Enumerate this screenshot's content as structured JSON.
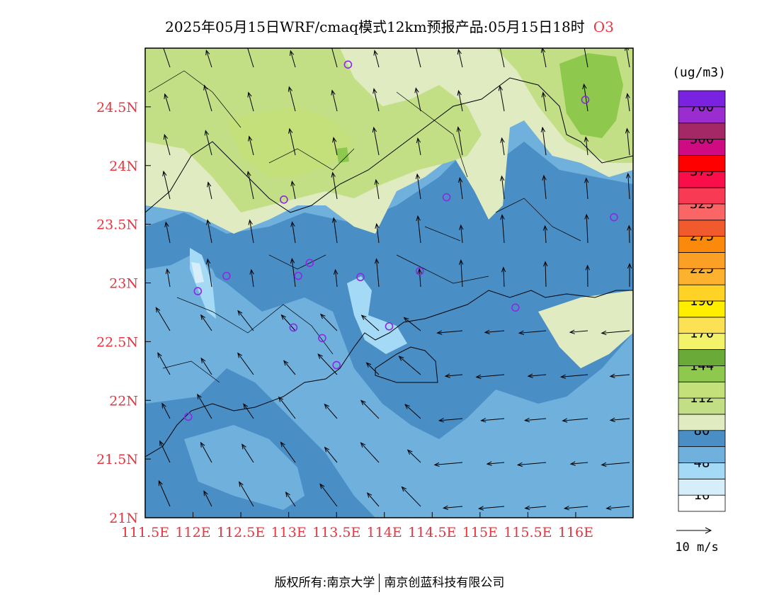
{
  "title": {
    "text": "2025年05月15日WRF/cmaq模式12km预报产品:05月15日18时",
    "species": "O3"
  },
  "footer": {
    "left": "版权所有:南京大学",
    "right": "南京创蓝科技有限公司"
  },
  "map": {
    "lon_labels": [
      "111.5E",
      "112E",
      "112.5E",
      "113E",
      "113.5E",
      "114E",
      "114.5E",
      "115E",
      "115.5E",
      "116E"
    ],
    "lat_labels": [
      "24.5N",
      "24N",
      "23.5N",
      "23N",
      "22.5N",
      "22N",
      "21.5N",
      "21N"
    ],
    "label_color": "#e8343e",
    "extent": {
      "lon_min": 111.5,
      "lon_max": 116.6,
      "lat_min": 21.0,
      "lat_max": 25.0
    }
  },
  "legend": {
    "unit": "(ug/m3)",
    "bins": [
      {
        "color": "#ffffff",
        "label": "16"
      },
      {
        "color": "#d6eefa",
        "label": ""
      },
      {
        "color": "#a4daf5",
        "label": "48"
      },
      {
        "color": "#6fb0dd",
        "label": ""
      },
      {
        "color": "#4a8ec6",
        "label": "80"
      },
      {
        "color": "#e0ebc2",
        "label": ""
      },
      {
        "color": "#c3df86",
        "label": "112"
      },
      {
        "color": "#c3e07a",
        "label": ""
      },
      {
        "color": "#8ec84c",
        "label": "144"
      },
      {
        "color": "#6aaa38",
        "label": ""
      },
      {
        "color": "#f2f36a",
        "label": "170"
      },
      {
        "color": "#fbe153",
        "label": ""
      },
      {
        "color": "#ffee00",
        "label": "190"
      },
      {
        "color": "#fed325",
        "label": ""
      },
      {
        "color": "#fcb22e",
        "label": "225"
      },
      {
        "color": "#fb9f25",
        "label": ""
      },
      {
        "color": "#fb8a0c",
        "label": "275"
      },
      {
        "color": "#f15a2d",
        "label": ""
      },
      {
        "color": "#fa6666",
        "label": "325"
      },
      {
        "color": "#f93a54",
        "label": ""
      },
      {
        "color": "#f90e49",
        "label": "375"
      },
      {
        "color": "#fe0000",
        "label": ""
      },
      {
        "color": "#cf0b84",
        "label": "500"
      },
      {
        "color": "#a52866",
        "label": ""
      },
      {
        "color": "#9b2ccf",
        "label": "700"
      },
      {
        "color": "#7a22e0",
        "label": ""
      }
    ],
    "wind_reference": "10 m/s"
  },
  "stations": [
    {
      "lon": 113.62,
      "lat": 24.86
    },
    {
      "lon": 116.1,
      "lat": 24.56
    },
    {
      "lon": 112.95,
      "lat": 23.71
    },
    {
      "lon": 114.65,
      "lat": 23.73
    },
    {
      "lon": 116.4,
      "lat": 23.56
    },
    {
      "lon": 112.35,
      "lat": 23.06
    },
    {
      "lon": 113.1,
      "lat": 23.06
    },
    {
      "lon": 113.22,
      "lat": 23.17
    },
    {
      "lon": 113.75,
      "lat": 23.05
    },
    {
      "lon": 114.37,
      "lat": 23.1
    },
    {
      "lon": 112.05,
      "lat": 22.93
    },
    {
      "lon": 113.05,
      "lat": 22.62
    },
    {
      "lon": 113.35,
      "lat": 22.53
    },
    {
      "lon": 114.05,
      "lat": 22.63
    },
    {
      "lon": 113.5,
      "lat": 22.3
    },
    {
      "lon": 115.37,
      "lat": 22.79
    },
    {
      "lon": 111.95,
      "lat": 21.86
    }
  ]
}
